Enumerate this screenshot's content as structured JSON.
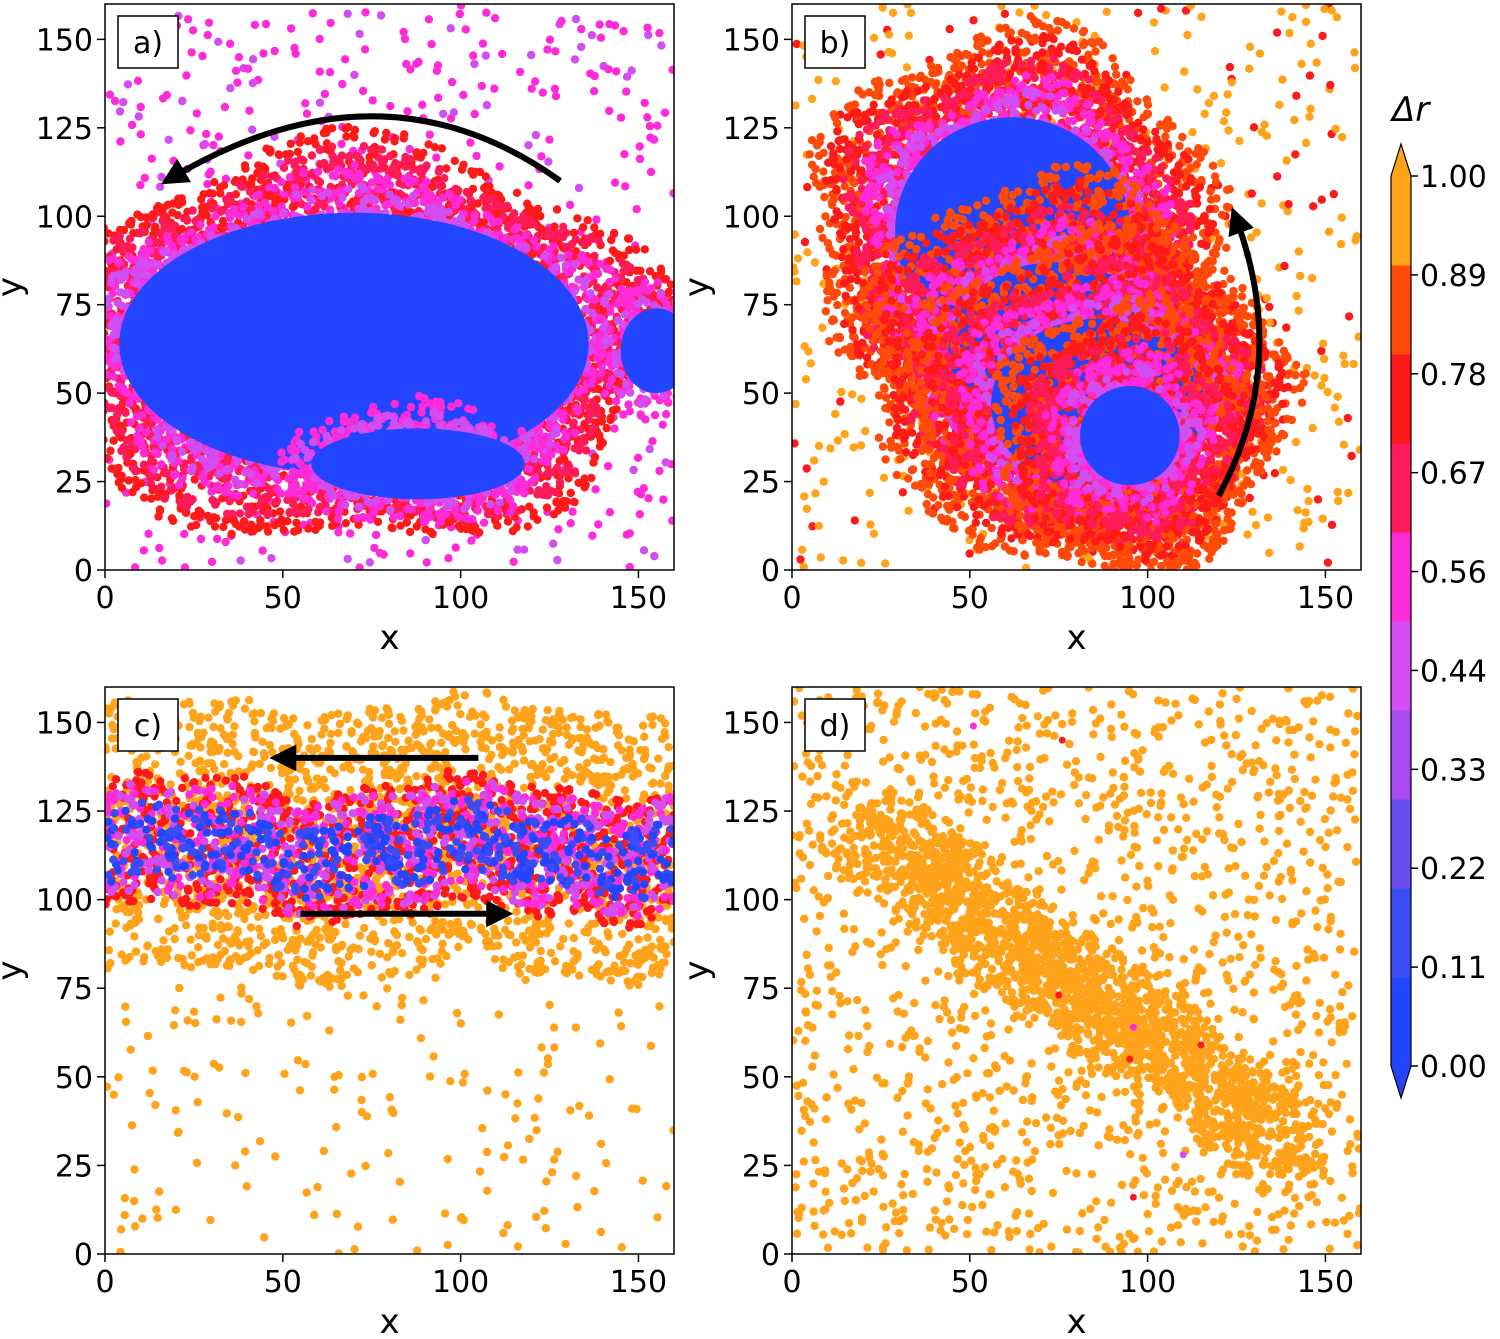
{
  "chart_data": [
    {
      "panel": "a)",
      "type": "scatter",
      "xlabel": "x",
      "ylabel": "y",
      "xlim": [
        0,
        160
      ],
      "ylim": [
        0,
        160
      ],
      "xticks": [
        "0",
        "50",
        "100",
        "150"
      ],
      "yticks": [
        "0",
        "25",
        "50",
        "75",
        "100",
        "125",
        "150"
      ],
      "background_color_value": 0.5,
      "clusters": [
        {
          "shape": "ellipse",
          "cx": 70,
          "cy": 64,
          "rx": 66,
          "ry": 37,
          "halo": [
            0.4,
            0.5,
            0.62,
            0.72
          ],
          "halo_width": 5
        },
        {
          "shape": "ellipse",
          "cx": 155,
          "cy": 62,
          "rx": 10,
          "ry": 12,
          "halo": [
            0.4,
            0.5
          ],
          "halo_width": 4
        },
        {
          "shape": "ellipse",
          "cx": 88,
          "cy": 30,
          "rx": 30,
          "ry": 10,
          "halo": [
            0.4,
            0.5
          ],
          "halo_width": 4
        }
      ],
      "arrows": [
        {
          "type": "arc",
          "from": [
            128,
            110
          ],
          "via": [
            78,
            146
          ],
          "to": [
            19,
            111
          ]
        }
      ]
    },
    {
      "panel": "b)",
      "type": "scatter",
      "xlabel": "x",
      "ylabel": "y",
      "xlim": [
        0,
        160
      ],
      "ylim": [
        0,
        160
      ],
      "xticks": [
        "0",
        "50",
        "100",
        "150"
      ],
      "yticks": [
        "0",
        "25",
        "50",
        "75",
        "100",
        "125",
        "150"
      ],
      "background_color_value": 0.95,
      "clusters": [
        {
          "shape": "ellipse",
          "cx": 62,
          "cy": 96,
          "rx": 33,
          "ry": 32,
          "halo": [
            0.4,
            0.5,
            0.62,
            0.72,
            0.85
          ],
          "halo_width": 5
        },
        {
          "shape": "ellipse",
          "cx": 74,
          "cy": 62,
          "rx": 30,
          "ry": 25,
          "halo": [
            0.4,
            0.5,
            0.62,
            0.72,
            0.85
          ],
          "halo_width": 5
        },
        {
          "shape": "ellipse",
          "cx": 86,
          "cy": 47,
          "rx": 30,
          "ry": 24,
          "halo": [
            0.4,
            0.5,
            0.62,
            0.72,
            0.85
          ],
          "halo_width": 5
        },
        {
          "shape": "ellipse",
          "cx": 95,
          "cy": 38,
          "rx": 14,
          "ry": 14,
          "halo": [
            0.4,
            0.5,
            0.62,
            0.72,
            0.85
          ],
          "halo_width": 5
        }
      ],
      "arrows": [
        {
          "type": "arc",
          "from": [
            120,
            21
          ],
          "via": [
            140,
            58
          ],
          "to": [
            125,
            99
          ]
        }
      ]
    },
    {
      "panel": "c)",
      "type": "scatter",
      "xlabel": "x",
      "ylabel": "y",
      "xlim": [
        0,
        160
      ],
      "ylim": [
        0,
        160
      ],
      "xticks": [
        "0",
        "50",
        "100",
        "150"
      ],
      "yticks": [
        "0",
        "25",
        "50",
        "75",
        "100",
        "125",
        "150"
      ],
      "background_color_value": 1.0,
      "bands": [
        {
          "y_min": 79,
          "y_max": 155,
          "value": 1.0
        },
        {
          "y_min": 96,
          "y_max": 133,
          "value": 0.78
        },
        {
          "y_min": 99,
          "y_max": 130,
          "value": 0.5
        },
        {
          "y_min": 104,
          "y_max": 124,
          "value": 0.1
        }
      ],
      "arrows": [
        {
          "type": "line",
          "from": [
            105,
            140
          ],
          "to": [
            50,
            140
          ]
        },
        {
          "type": "line",
          "from": [
            55,
            96
          ],
          "to": [
            111,
            96
          ]
        }
      ]
    },
    {
      "panel": "d)",
      "type": "scatter",
      "xlabel": "x",
      "ylabel": "y",
      "xlim": [
        0,
        160
      ],
      "ylim": [
        0,
        160
      ],
      "xticks": [
        "0",
        "50",
        "100",
        "150"
      ],
      "yticks": [
        "0",
        "25",
        "50",
        "75",
        "100",
        "125",
        "150"
      ],
      "background_color_value": 1.0,
      "special_points": [
        {
          "x": 51,
          "y": 149,
          "value": 0.5
        },
        {
          "x": 76,
          "y": 145,
          "value": 0.72
        },
        {
          "x": 75,
          "y": 73,
          "value": 0.72
        },
        {
          "x": 96,
          "y": 64,
          "value": 0.5
        },
        {
          "x": 95,
          "y": 55,
          "value": 0.72
        },
        {
          "x": 115,
          "y": 59,
          "value": 0.72
        },
        {
          "x": 110,
          "y": 28,
          "value": 0.4
        },
        {
          "x": 96,
          "y": 16,
          "value": 0.72
        }
      ]
    }
  ],
  "colorbar": {
    "title": "Δr",
    "ticks": [
      "1.00",
      "0.89",
      "0.78",
      "0.67",
      "0.56",
      "0.44",
      "0.33",
      "0.22",
      "0.11",
      "0.00"
    ],
    "colors": [
      "#2345ff",
      "#3a4cf5",
      "#6a4ff0",
      "#a64cf0",
      "#d24df2",
      "#ff2bd8",
      "#ff1a5a",
      "#ff1a1a",
      "#ff4a0a",
      "#ffa31a"
    ],
    "extend_colors": {
      "low": "#2345ff",
      "high": "#ffa31a"
    }
  }
}
